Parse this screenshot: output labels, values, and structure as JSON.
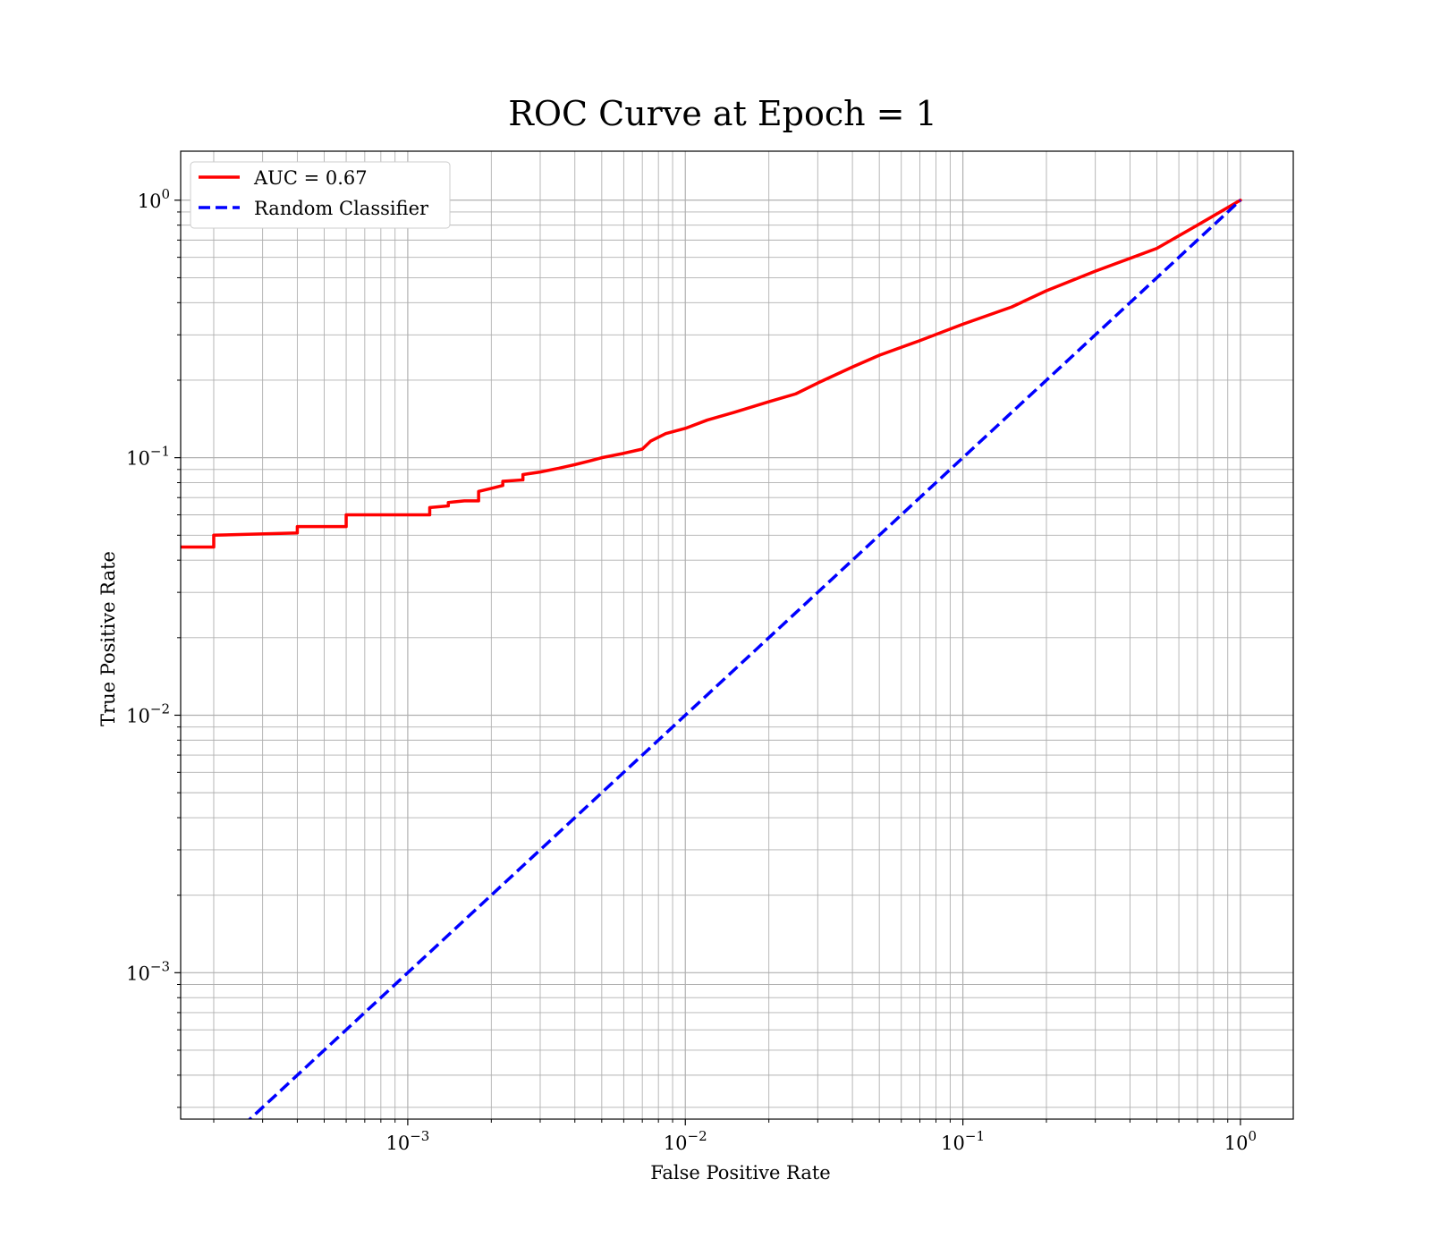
{
  "chart_data": {
    "type": "line",
    "title": "ROC Curve at Epoch = 1",
    "xlabel": "False Positive Rate",
    "ylabel": "True Positive Rate",
    "xscale": "log",
    "yscale": "log",
    "xlim": [
      0.000152,
      1.55
    ],
    "ylim": [
      0.00027,
      1.55
    ],
    "grid": true,
    "grid_which": "both",
    "legend_position": "upper-left",
    "x_ticks": [
      {
        "value": 0.001,
        "base": "10",
        "exp": "−3"
      },
      {
        "value": 0.01,
        "base": "10",
        "exp": "−2"
      },
      {
        "value": 0.1,
        "base": "10",
        "exp": "−1"
      },
      {
        "value": 1,
        "base": "10",
        "exp": "0"
      }
    ],
    "y_ticks": [
      {
        "value": 0.001,
        "base": "10",
        "exp": "−3"
      },
      {
        "value": 0.01,
        "base": "10",
        "exp": "−2"
      },
      {
        "value": 0.1,
        "base": "10",
        "exp": "−1"
      },
      {
        "value": 1,
        "base": "10",
        "exp": "0"
      }
    ],
    "series": [
      {
        "name": "AUC = 0.67",
        "color": "#ff0000",
        "style": "solid",
        "x": [
          0.000152,
          0.0002,
          0.0002,
          0.0004,
          0.0004,
          0.0006,
          0.0006,
          0.0012,
          0.0012,
          0.0014,
          0.0014,
          0.0016,
          0.0018,
          0.0018,
          0.002,
          0.0022,
          0.0022,
          0.0026,
          0.0026,
          0.003,
          0.0035,
          0.004,
          0.0045,
          0.005,
          0.006,
          0.007,
          0.0075,
          0.0085,
          0.01,
          0.012,
          0.015,
          0.02,
          0.025,
          0.03,
          0.04,
          0.05,
          0.07,
          0.1,
          0.15,
          0.2,
          0.3,
          0.5,
          0.7,
          1.0
        ],
        "y": [
          0.045,
          0.045,
          0.05,
          0.051,
          0.054,
          0.054,
          0.06,
          0.06,
          0.064,
          0.065,
          0.067,
          0.068,
          0.068,
          0.074,
          0.076,
          0.078,
          0.081,
          0.082,
          0.086,
          0.088,
          0.091,
          0.094,
          0.097,
          0.1,
          0.104,
          0.108,
          0.116,
          0.124,
          0.13,
          0.14,
          0.15,
          0.165,
          0.177,
          0.195,
          0.225,
          0.25,
          0.285,
          0.33,
          0.385,
          0.445,
          0.53,
          0.65,
          0.8,
          1.0
        ]
      },
      {
        "name": "Random Classifier",
        "color": "#0000ff",
        "style": "dashed",
        "x": [
          0.000152,
          1.0
        ],
        "y": [
          0.000152,
          1.0
        ]
      }
    ]
  }
}
